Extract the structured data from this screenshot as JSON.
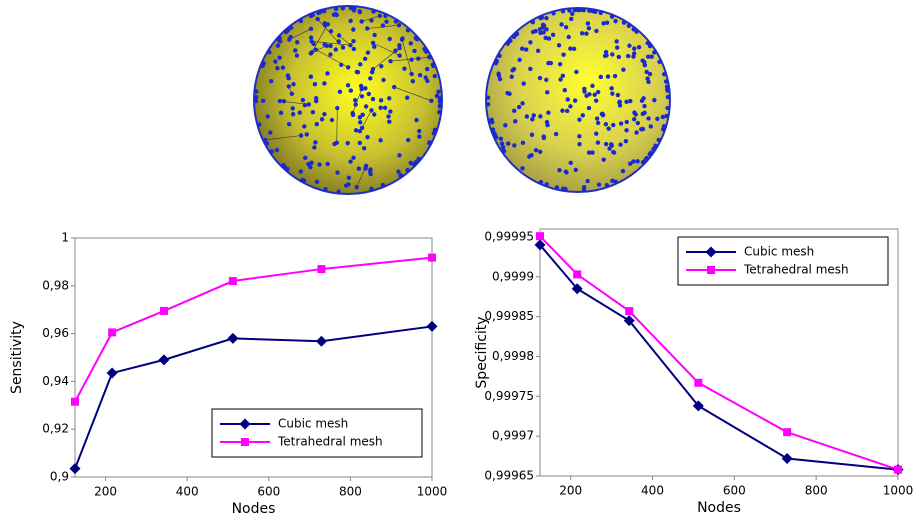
{
  "chart_data": [
    {
      "type": "line",
      "x_label": "Nodes",
      "y_label": "Sensitivity",
      "x": [
        125,
        216,
        343,
        512,
        729,
        1000
      ],
      "series": [
        {
          "name": "Cubic mesh",
          "color": "#000080",
          "marker": "diamond",
          "values": [
            0.9035,
            0.9435,
            0.949,
            0.958,
            0.9568,
            0.963
          ]
        },
        {
          "name": "Tetrahedral mesh",
          "color": "#ff00ff",
          "marker": "square",
          "values": [
            0.9315,
            0.9605,
            0.9695,
            0.982,
            0.987,
            0.9918
          ]
        }
      ],
      "xlim": [
        125,
        1000
      ],
      "xticks": [
        200,
        400,
        600,
        800,
        1000
      ],
      "ylim": [
        0.9,
        1
      ],
      "yticks": [
        {
          "value": 0.9,
          "label": "0,9"
        },
        {
          "value": 0.92,
          "label": "0,92"
        },
        {
          "value": 0.94,
          "label": "0,94"
        },
        {
          "value": 0.96,
          "label": "0,96"
        },
        {
          "value": 0.98,
          "label": "0,98"
        },
        1
      ],
      "legend": "lower right",
      "grid": false
    },
    {
      "type": "line",
      "x_label": "Nodes",
      "y_label": "Specificity",
      "x": [
        125,
        216,
        343,
        512,
        729,
        1000
      ],
      "series": [
        {
          "name": "Cubic mesh",
          "color": "#000080",
          "marker": "diamond",
          "values": [
            0.99994,
            0.999885,
            0.999845,
            0.999738,
            0.999672,
            0.999658
          ]
        },
        {
          "name": "Tetrahedral mesh",
          "color": "#ff00ff",
          "marker": "square",
          "values": [
            0.999951,
            0.999903,
            0.999857,
            0.999767,
            0.999705,
            0.999658
          ]
        }
      ],
      "xlim": [
        125,
        1000
      ],
      "xticks": [
        200,
        400,
        600,
        800,
        1000
      ],
      "ylim": [
        0.99965,
        0.99996
      ],
      "yticks": [
        {
          "value": 0.99965,
          "label": "0,99965"
        },
        {
          "value": 0.9997,
          "label": "0,9997"
        },
        {
          "value": 0.99975,
          "label": "0,99975"
        },
        {
          "value": 0.9998,
          "label": "0,9998"
        },
        {
          "value": 0.99985,
          "label": "0,99985"
        },
        {
          "value": 0.9999,
          "label": "0,9999"
        },
        {
          "value": 0.99995,
          "label": "0,99995"
        }
      ],
      "legend": "upper right",
      "grid": false
    }
  ]
}
